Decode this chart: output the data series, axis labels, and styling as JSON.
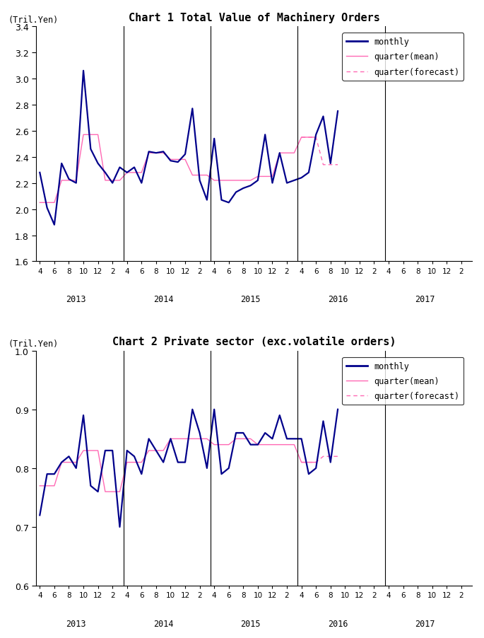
{
  "chart1_title": "Chart 1 Total Value of Machinery Orders",
  "chart2_title": "Chart 2 Private sector (exc.volatile orders)",
  "ylabel": "(Tril.Yen)",
  "chart1_ylim": [
    1.6,
    3.4
  ],
  "chart1_yticks": [
    1.6,
    1.8,
    2.0,
    2.2,
    2.4,
    2.6,
    2.8,
    3.0,
    3.2,
    3.4
  ],
  "chart2_ylim": [
    0.6,
    1.0
  ],
  "chart2_yticks": [
    0.6,
    0.7,
    0.8,
    0.9,
    1.0
  ],
  "year_labels": [
    "2013",
    "2014",
    "2015",
    "2016",
    "2017"
  ],
  "monthly_color": "#00008B",
  "quarter_mean_color": "#FF69B4",
  "quarter_forecast_color": "#FF69B4",
  "chart1_monthly": [
    2.28,
    2.01,
    1.88,
    2.35,
    2.23,
    2.2,
    3.06,
    2.46,
    2.35,
    2.28,
    2.2,
    2.32,
    2.28,
    2.32,
    2.2,
    2.44,
    2.43,
    2.44,
    2.37,
    2.36,
    2.42,
    2.77,
    2.22,
    2.07,
    2.54,
    2.07,
    2.05,
    2.13,
    2.16,
    2.18,
    2.22,
    2.57,
    2.2,
    2.43,
    2.2,
    2.22,
    2.24,
    2.28,
    2.57,
    2.71,
    2.35,
    2.75
  ],
  "chart1_quarter_mean": [
    2.05,
    2.05,
    2.05,
    2.22,
    2.22,
    2.22,
    2.57,
    2.57,
    2.57,
    2.22,
    2.22,
    2.22,
    2.28,
    2.28,
    2.28,
    2.43,
    2.43,
    2.43,
    2.38,
    2.38,
    2.38,
    2.26,
    2.26,
    2.26,
    2.22,
    2.22,
    2.22,
    2.22,
    2.22,
    2.22,
    2.25,
    2.25,
    2.25,
    2.43,
    2.43,
    2.43,
    2.55,
    2.55,
    2.55,
    null,
    null,
    null
  ],
  "chart1_quarter_forecast": [
    null,
    null,
    null,
    null,
    null,
    null,
    null,
    null,
    null,
    null,
    null,
    null,
    null,
    null,
    null,
    null,
    null,
    null,
    null,
    null,
    null,
    null,
    null,
    null,
    null,
    null,
    null,
    null,
    null,
    null,
    null,
    null,
    null,
    null,
    null,
    null,
    2.55,
    2.55,
    2.55,
    2.34,
    2.34,
    2.34
  ],
  "chart2_monthly": [
    0.72,
    0.79,
    0.79,
    0.81,
    0.82,
    0.8,
    0.89,
    0.77,
    0.76,
    0.83,
    0.83,
    0.7,
    0.83,
    0.82,
    0.79,
    0.85,
    0.83,
    0.81,
    0.85,
    0.81,
    0.81,
    0.9,
    0.86,
    0.8,
    0.9,
    0.79,
    0.8,
    0.86,
    0.86,
    0.84,
    0.84,
    0.86,
    0.85,
    0.89,
    0.85,
    0.85,
    0.85,
    0.79,
    0.8,
    0.88,
    0.81,
    0.9
  ],
  "chart2_quarter_mean": [
    0.77,
    0.77,
    0.77,
    0.81,
    0.81,
    0.81,
    0.83,
    0.83,
    0.83,
    0.76,
    0.76,
    0.76,
    0.81,
    0.81,
    0.81,
    0.83,
    0.83,
    0.83,
    0.85,
    0.85,
    0.85,
    0.85,
    0.85,
    0.85,
    0.84,
    0.84,
    0.84,
    0.85,
    0.85,
    0.85,
    0.84,
    0.84,
    0.84,
    0.84,
    0.84,
    0.84,
    0.81,
    0.81,
    0.81,
    null,
    null,
    null
  ],
  "chart2_quarter_forecast": [
    null,
    null,
    null,
    null,
    null,
    null,
    null,
    null,
    null,
    null,
    null,
    null,
    null,
    null,
    null,
    null,
    null,
    null,
    null,
    null,
    null,
    null,
    null,
    null,
    null,
    null,
    null,
    null,
    null,
    null,
    null,
    null,
    null,
    null,
    null,
    null,
    0.81,
    0.81,
    0.81,
    0.82,
    0.82,
    0.82
  ]
}
